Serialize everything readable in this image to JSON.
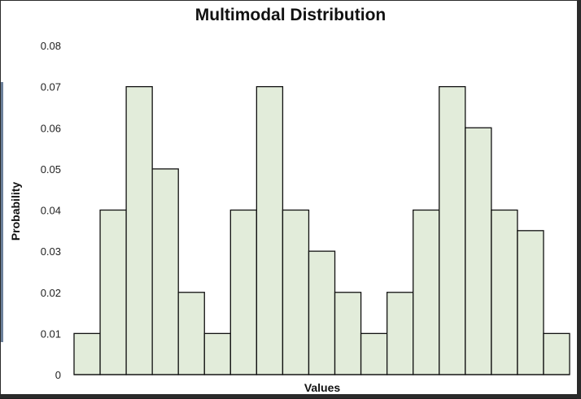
{
  "chart_data": {
    "type": "bar",
    "title": "Multimodal Distribution",
    "xlabel": "Values",
    "ylabel": "Probability",
    "ylim": [
      0,
      0.08
    ],
    "yticks": [
      "0",
      "0.01",
      "0.02",
      "0.03",
      "0.04",
      "0.05",
      "0.06",
      "0.07",
      "0.08"
    ],
    "values": [
      0.01,
      0.04,
      0.07,
      0.05,
      0.02,
      0.01,
      0.04,
      0.07,
      0.04,
      0.03,
      0.02,
      0.01,
      0.02,
      0.04,
      0.07,
      0.06,
      0.04,
      0.035,
      0.01
    ],
    "bar_fill": "#e2ecda",
    "bar_stroke": "#111111",
    "grid": false,
    "legend": "none"
  }
}
